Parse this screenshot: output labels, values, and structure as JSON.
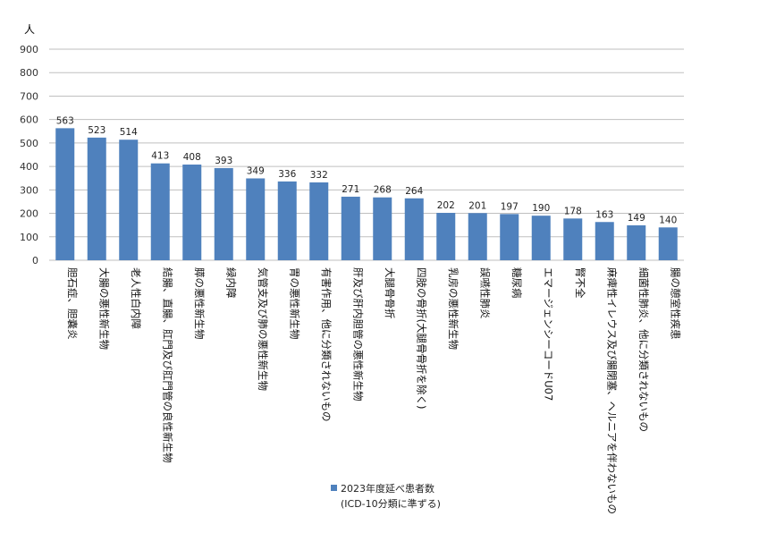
{
  "chart_data": {
    "type": "bar",
    "unit_label": "人",
    "ylim": [
      0,
      900
    ],
    "yticks": [
      0,
      100,
      200,
      300,
      400,
      500,
      600,
      700,
      800,
      900
    ],
    "grid": true,
    "legend_position": "bottom",
    "categories": [
      "胆石症、胆嚢炎",
      "大腸の悪性新生物",
      "老人性白内障",
      "結腸、直腸、肛門及び肛門管の良性新生物",
      "膵の悪性新生物",
      "緑内障",
      "気管支及び肺の悪性新生物",
      "胃の悪性新生物",
      "有害作用、他に分類されないもの",
      "肝及び肝内胆管の悪性新生物",
      "大腿骨骨折",
      "四肢の骨折(大腿骨骨折を除く)",
      "乳房の悪性新生物",
      "誤嚥性肺炎",
      "糖尿病",
      "エマージェンシーコードU07",
      "腎不全",
      "麻痺性イレウス及び腸閉塞、ヘルニアを伴わないもの",
      "細菌性肺炎、他に分類されないもの",
      "腸の憩室性疾患"
    ],
    "series": [
      {
        "name": "2023年度延べ患者数",
        "values": [
          563,
          523,
          514,
          413,
          408,
          393,
          349,
          336,
          332,
          271,
          268,
          264,
          202,
          201,
          197,
          190,
          178,
          163,
          149,
          140
        ]
      }
    ],
    "legend_note": "(ICD-10分類に準ずる)",
    "bar_color": "#4f81bd",
    "grid_color": "#bfbfbf"
  }
}
